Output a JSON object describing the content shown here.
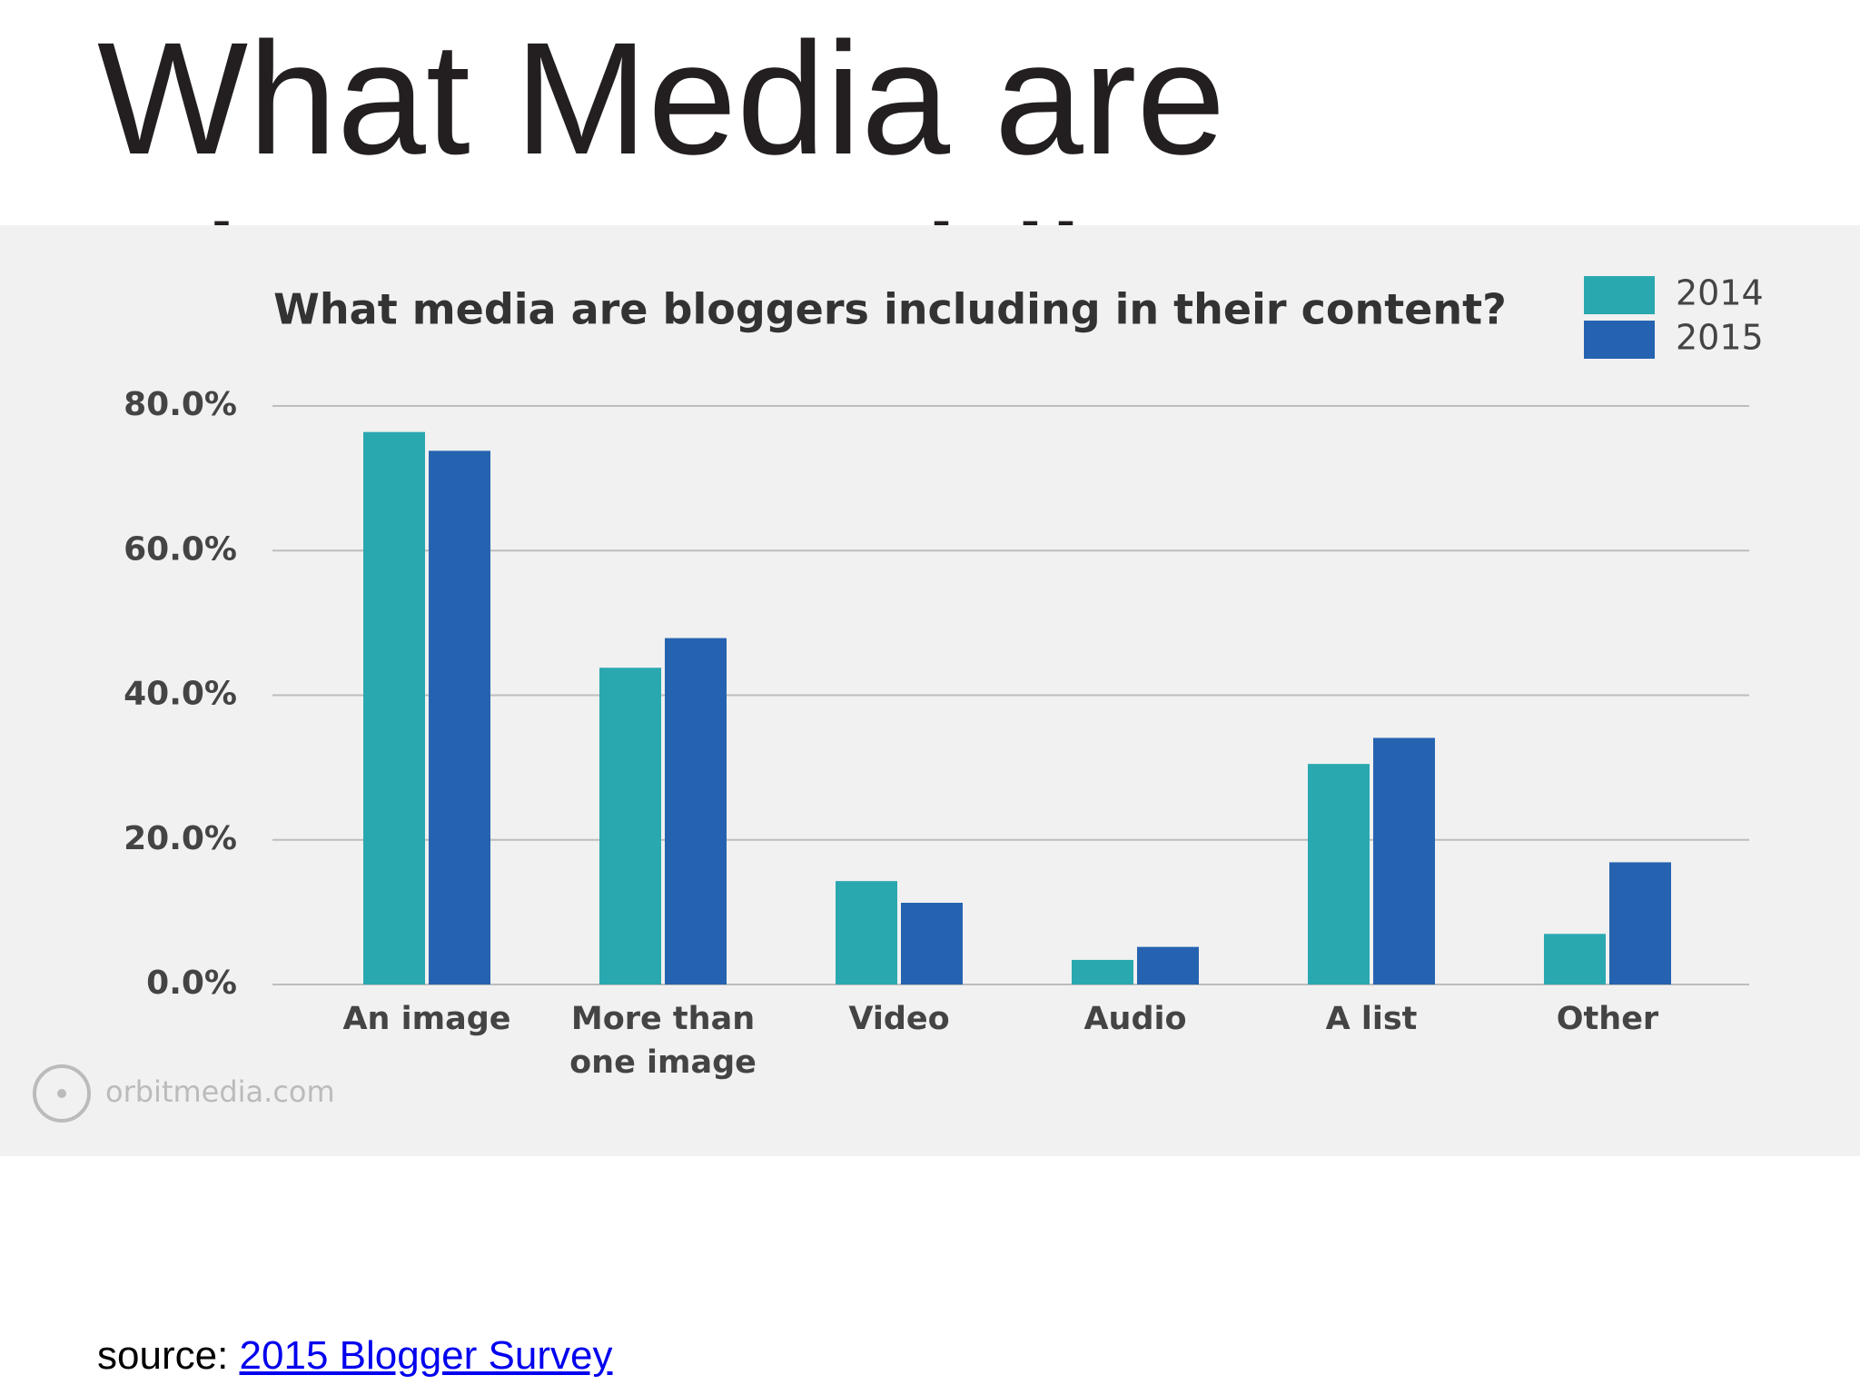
{
  "title": "What Media are Bloggers Adding?",
  "chart_data": {
    "type": "bar",
    "title": "What media are bloggers including in their content?",
    "categories": [
      "An image",
      "More than one image",
      "Video",
      "Audio",
      "A list",
      "Other"
    ],
    "series": [
      {
        "name": "2014",
        "color": "#2aa8b0",
        "values": [
          76.4,
          43.8,
          14.3,
          3.4,
          30.5,
          7.0
        ]
      },
      {
        "name": "2015",
        "color": "#2563b0",
        "values": [
          73.8,
          47.9,
          11.3,
          5.2,
          34.1,
          16.9
        ]
      }
    ],
    "ylim": [
      0,
      80
    ],
    "yticks": [
      {
        "value": 0,
        "label": "0.0%"
      },
      {
        "value": 20,
        "label": "20.0%"
      },
      {
        "value": 40,
        "label": "40.0%"
      },
      {
        "value": 60,
        "label": "60.0%"
      },
      {
        "value": 80,
        "label": "80.0%"
      }
    ],
    "grid": true,
    "legend": "top-right",
    "watermark": "orbitmedia.com"
  },
  "source": {
    "label": "source:",
    "link": "2015 Blogger Survey"
  }
}
